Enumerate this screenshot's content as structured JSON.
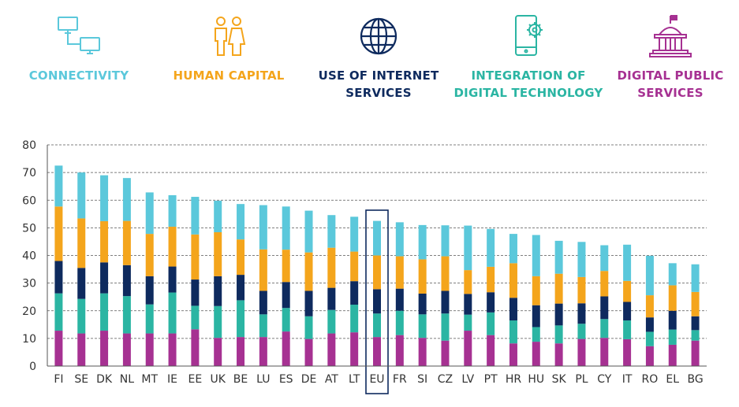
{
  "legend": [
    {
      "label": "CONNECTIVITY",
      "color": "#5bc8db",
      "icon": "computer-network-icon"
    },
    {
      "label": "HUMAN CAPITAL",
      "color": "#f4a51c",
      "icon": "people-icon"
    },
    {
      "label": "USE OF INTERNET\nSERVICES",
      "color": "#0e2a5e",
      "icon": "globe-icon"
    },
    {
      "label": "INTEGRATION OF\nDIGITAL TECHNOLOGY",
      "color": "#2bb5a3",
      "icon": "smartphone-gear-icon"
    },
    {
      "label": "DIGITAL PUBLIC\nSERVICES",
      "color": "#a63192",
      "icon": "government-building-icon"
    }
  ],
  "chart_data": {
    "type": "bar",
    "stacked": true,
    "categories": [
      "FI",
      "SE",
      "DK",
      "NL",
      "MT",
      "IE",
      "EE",
      "UK",
      "BE",
      "LU",
      "ES",
      "DE",
      "AT",
      "LT",
      "EU",
      "FR",
      "SI",
      "CZ",
      "LV",
      "PT",
      "HR",
      "HU",
      "SK",
      "PL",
      "CY",
      "IT",
      "RO",
      "EL",
      "BG"
    ],
    "highlight": "EU",
    "ylim": [
      0,
      80
    ],
    "yticks": [
      0,
      10,
      20,
      30,
      40,
      50,
      60,
      70,
      80
    ],
    "grid": true,
    "series": [
      {
        "name": "DIGITAL PUBLIC SERVICES",
        "color": "#a63192",
        "values": [
          12.8,
          11.8,
          12.8,
          11.8,
          11.8,
          11.8,
          13.3,
          10.2,
          10.5,
          10.5,
          12.5,
          9.8,
          11.8,
          12.2,
          10.5,
          11.2,
          10.2,
          9.2,
          12.8,
          11.2,
          8.2,
          8.8,
          8.2,
          9.8,
          10.2,
          9.7,
          7.2,
          7.7,
          9.2
        ]
      },
      {
        "name": "INTEGRATION OF DIGITAL TECHNOLOGY",
        "color": "#2bb5a3",
        "values": [
          13.5,
          12.5,
          13.5,
          13.5,
          10.5,
          14.8,
          8.5,
          11.5,
          13.3,
          8.2,
          8.5,
          8.2,
          8.5,
          10.0,
          8.5,
          8.8,
          8.5,
          9.8,
          5.8,
          8.2,
          8.3,
          5.3,
          6.5,
          5.5,
          6.8,
          6.8,
          5.2,
          5.5,
          3.8
        ]
      },
      {
        "name": "USE OF INTERNET SERVICES",
        "color": "#0e2a5e",
        "values": [
          11.7,
          11.2,
          11.2,
          11.2,
          10.2,
          9.4,
          9.5,
          10.8,
          9.2,
          8.5,
          9.4,
          9.2,
          8.0,
          8.5,
          8.8,
          8.0,
          7.5,
          8.2,
          7.5,
          7.3,
          8.2,
          7.9,
          7.9,
          7.4,
          8.2,
          6.7,
          5.2,
          6.8,
          5.0
        ]
      },
      {
        "name": "HUMAN CAPITAL",
        "color": "#f4a51c",
        "values": [
          19.7,
          17.9,
          14.9,
          16.0,
          15.3,
          14.4,
          16.3,
          15.9,
          12.8,
          15.0,
          11.7,
          13.9,
          14.5,
          10.7,
          12.2,
          11.7,
          12.4,
          12.5,
          8.6,
          9.2,
          12.5,
          10.5,
          10.8,
          9.5,
          9.2,
          7.6,
          8.0,
          9.2,
          8.8
        ]
      },
      {
        "name": "CONNECTIVITY",
        "color": "#5bc8db",
        "values": [
          14.8,
          16.6,
          16.6,
          15.5,
          15.0,
          11.4,
          13.6,
          11.4,
          12.8,
          16.0,
          15.6,
          15.1,
          11.8,
          12.6,
          12.5,
          12.3,
          12.4,
          11.2,
          16.1,
          13.7,
          10.6,
          14.9,
          11.9,
          12.7,
          9.3,
          13.1,
          14.3,
          8.0,
          10.0
        ]
      }
    ]
  }
}
